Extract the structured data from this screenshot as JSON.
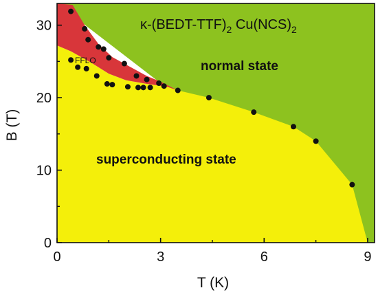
{
  "chart_data": {
    "type": "scatter",
    "title_parts": {
      "kappa": "κ-(BEDT-TTF)",
      "sub1": "2",
      "compound": " Cu(NCS)",
      "sub2": "2"
    },
    "xlabel": "T (K)",
    "ylabel": "B (T)",
    "xlim": [
      0,
      9.2
    ],
    "ylim": [
      0,
      33
    ],
    "xticks": [
      0,
      3,
      6,
      9
    ],
    "yticks": [
      0,
      10,
      20,
      30
    ],
    "xtick_labels": [
      "0",
      "3",
      "6",
      "9"
    ],
    "ytick_labels": [
      "0",
      "10",
      "20",
      "30"
    ],
    "grid": false,
    "regions": [
      {
        "label": "normal state",
        "color": "#8dc21f"
      },
      {
        "label": "superconducting state",
        "color": "#f4ef0a"
      },
      {
        "label": "FFLO",
        "color": "#d8363a"
      }
    ],
    "series": [
      {
        "marker_color": "#111111",
        "points": [
          [
            0.4,
            31.9
          ],
          [
            0.8,
            29.5
          ],
          [
            0.9,
            28.0
          ],
          [
            1.2,
            27.0
          ],
          [
            1.35,
            26.7
          ],
          [
            1.5,
            25.5
          ],
          [
            1.95,
            24.7
          ],
          [
            0.4,
            25.2
          ],
          [
            0.6,
            24.2
          ],
          [
            0.85,
            24.0
          ],
          [
            1.15,
            23.0
          ],
          [
            2.3,
            23.0
          ],
          [
            2.6,
            22.5
          ],
          [
            2.95,
            22.0
          ],
          [
            1.45,
            21.9
          ],
          [
            1.6,
            21.8
          ],
          [
            2.05,
            21.5
          ],
          [
            2.35,
            21.4
          ],
          [
            2.5,
            21.4
          ],
          [
            2.7,
            21.4
          ],
          [
            3.1,
            21.6
          ],
          [
            3.5,
            21.0
          ],
          [
            4.4,
            20.0
          ],
          [
            5.7,
            18.0
          ],
          [
            6.85,
            16.0
          ],
          [
            7.5,
            14.0
          ],
          [
            8.55,
            8.0
          ]
        ]
      }
    ]
  }
}
